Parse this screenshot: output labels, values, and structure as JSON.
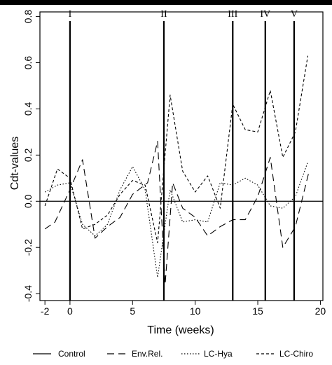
{
  "chart_data": {
    "type": "line",
    "xlabel": "Time (weeks)",
    "ylabel": "Cdt-values",
    "xlim": [
      -2.4,
      20.2
    ],
    "ylim": [
      -0.43,
      0.82
    ],
    "x_ticks": [
      -2,
      0,
      5,
      10,
      15,
      20
    ],
    "y_ticks": [
      -0.4,
      -0.2,
      0.0,
      0.2,
      0.4,
      0.6,
      0.8
    ],
    "grid": false,
    "legend_position": "bottom",
    "zero_line": true,
    "events": [
      {
        "label": "I",
        "x": 0.0
      },
      {
        "label": "II",
        "x": 7.5
      },
      {
        "label": "III",
        "x": 13.0
      },
      {
        "label": "IV",
        "x": 15.6
      },
      {
        "label": "V",
        "x": 17.9
      }
    ],
    "series": [
      {
        "name": "Control",
        "dash": "solid",
        "x": [],
        "values": []
      },
      {
        "name": "Env.Rel.",
        "dash": "long",
        "x": [
          -2,
          -1.2,
          0,
          1,
          2,
          3,
          4,
          5,
          6.2,
          7,
          7.6,
          8.2,
          9,
          10,
          11,
          12,
          13,
          14,
          15,
          16,
          17,
          18,
          19.1
        ],
        "values": [
          -0.12,
          -0.09,
          0.05,
          0.18,
          -0.16,
          -0.11,
          -0.07,
          0.03,
          0.08,
          0.26,
          -0.36,
          0.08,
          -0.03,
          -0.07,
          -0.15,
          -0.11,
          -0.08,
          -0.08,
          0.02,
          0.19,
          -0.2,
          -0.11,
          0.13
        ]
      },
      {
        "name": "LC-Hya",
        "dash": "dotted",
        "x": [
          -2,
          -1,
          0,
          1,
          2,
          3,
          4,
          5,
          6,
          7,
          8,
          9,
          10,
          11,
          12,
          13,
          14,
          15,
          16,
          17,
          18,
          19
        ],
        "values": [
          0.04,
          0.07,
          0.08,
          -0.1,
          -0.15,
          -0.1,
          0.05,
          0.15,
          0.05,
          -0.33,
          0.05,
          -0.09,
          -0.08,
          -0.09,
          0.08,
          0.07,
          0.1,
          0.07,
          -0.02,
          -0.03,
          0.02,
          0.17
        ]
      },
      {
        "name": "LC-Chiro",
        "dash": "short",
        "x": [
          -2,
          -1,
          0,
          1,
          2,
          3,
          4,
          5,
          6,
          7,
          8,
          9,
          10,
          11,
          12,
          13,
          14,
          15,
          16,
          17,
          18,
          19
        ],
        "values": [
          -0.02,
          0.14,
          0.1,
          -0.12,
          -0.1,
          -0.06,
          0.03,
          0.09,
          0.07,
          -0.18,
          0.46,
          0.13,
          0.04,
          0.11,
          -0.03,
          0.42,
          0.31,
          0.3,
          0.48,
          0.19,
          0.3,
          0.63
        ]
      }
    ]
  }
}
